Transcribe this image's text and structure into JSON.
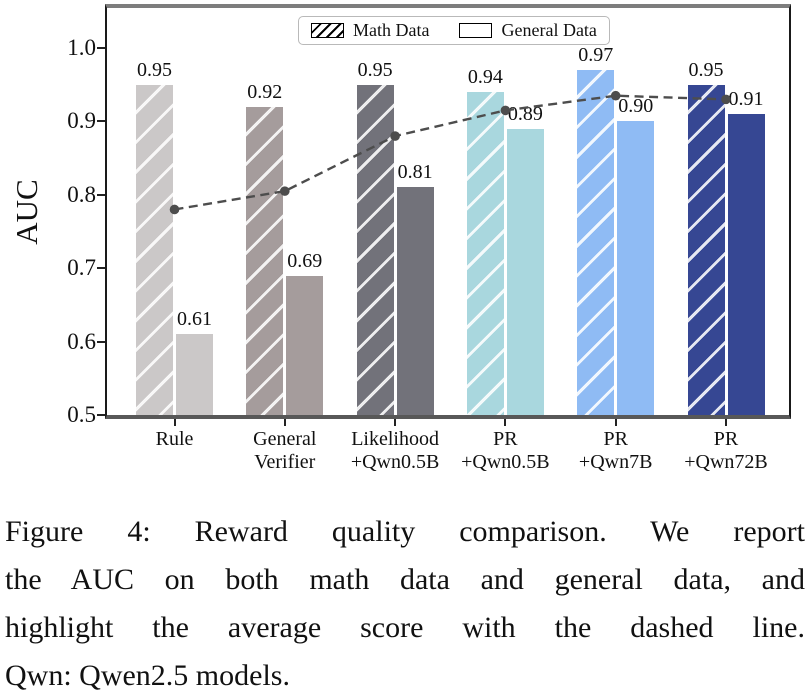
{
  "figure": {
    "caption": {
      "text": "Figure 4: Reward quality comparison. We report the AUC on both math data and general data, and highlight the average score with the dashed line. Qwn: Qwen2.5 models.",
      "lines": [
        "Figure 4: Reward quality comparison. We report",
        "the AUC on both math data and general data, and",
        "highlight the average score with the dashed line.",
        "Qwn: Qwen2.5 models."
      ]
    }
  },
  "chart_data": {
    "type": "bar",
    "title": "",
    "xlabel": "",
    "ylabel": "AUC",
    "ylim": [
      0.5,
      1.0
    ],
    "grid": false,
    "yticks": [
      "0.5",
      "0.6",
      "0.7",
      "0.8",
      "0.9",
      "1.0"
    ],
    "categories": [
      "Rule",
      "General Verifier",
      "Likelihood +Qwn0.5B",
      "PR +Qwn0.5B",
      "PR +Qwn7B",
      "PR +Qwn72B"
    ],
    "category_label_lines": [
      [
        "Rule"
      ],
      [
        "General",
        "Verifier"
      ],
      [
        "Likelihood",
        "+Qwn0.5B"
      ],
      [
        "PR",
        "+Qwn0.5B"
      ],
      [
        "PR",
        "+Qwn7B"
      ],
      [
        "PR",
        "+Qwn72B"
      ]
    ],
    "series": [
      {
        "name": "Math Data",
        "hatch": "/",
        "values": [
          0.95,
          0.92,
          0.95,
          0.94,
          0.97,
          0.95
        ]
      },
      {
        "name": "General Data",
        "hatch": "",
        "values": [
          0.61,
          0.69,
          0.81,
          0.89,
          0.9,
          0.91
        ]
      }
    ],
    "average_line": {
      "label": "average score",
      "style": "dashed",
      "marker": "circle",
      "color": "#4d4d4d",
      "values": [
        0.78,
        0.805,
        0.88,
        0.915,
        0.935,
        0.93
      ]
    },
    "bar_colors": [
      "#cbc8c8",
      "#a59c9c",
      "#72727a",
      "#a9d7de",
      "#8fbbf4",
      "#364793"
    ],
    "legend": {
      "position": "upper center",
      "entries": [
        "Math Data",
        "General Data"
      ]
    }
  }
}
